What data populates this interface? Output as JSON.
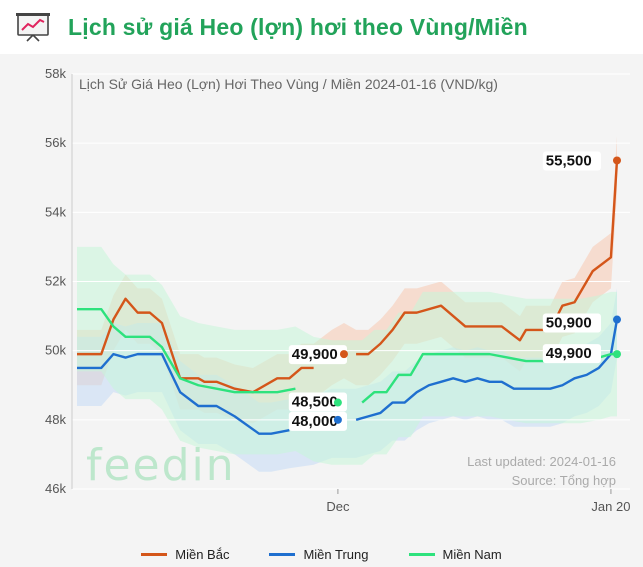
{
  "header": {
    "title": "Lịch sử giá Heo (lợn) hơi theo Vùng/Miền",
    "icon": "line-chart-board-icon"
  },
  "chart_data": {
    "type": "line",
    "title": "Lịch Sử Giá Heo (Lợn) Hơi Theo Vùng / Miền 2024-01-16 (VND/kg)",
    "ylim": [
      46000,
      58000
    ],
    "y_ticks": [
      "46k",
      "48k",
      "50k",
      "52k",
      "54k",
      "56k",
      "58k"
    ],
    "x_ticks": [
      "Dec",
      "Jan 20"
    ],
    "grid": "horizontal",
    "legend_position": "bottom",
    "watermark": "feedin",
    "last_updated": "Last updated: 2024-01-16",
    "source": "Source: Tổng hợp",
    "series": [
      {
        "name": "Miền Bắc",
        "color": "#d4561a",
        "band_color": "#f7c9b0",
        "end_label": "55,500",
        "mid_label": "49,900",
        "x": [
          "2023-10-19",
          "2023-10-23",
          "2023-10-25",
          "2023-10-27",
          "2023-10-29",
          "2023-10-31",
          "2023-11-02",
          "2023-11-05",
          "2023-11-08",
          "2023-11-09",
          "2023-11-11",
          "2023-11-14",
          "2023-11-17",
          "2023-11-21",
          "2023-11-23",
          "2023-11-25",
          "2023-11-27",
          "2023-11-30",
          "2023-12-02",
          "2023-12-04",
          "2023-12-06",
          "2023-12-08",
          "2023-12-10",
          "2023-12-12",
          "2023-12-14",
          "2023-12-18",
          "2023-12-22",
          "2023-12-24",
          "2023-12-28",
          "2023-12-31",
          "2024-01-01",
          "2024-01-03",
          "2024-01-05",
          "2024-01-07",
          "2024-01-09",
          "2024-01-12",
          "2024-01-15",
          "2024-01-16"
        ],
        "y": [
          49900,
          49900,
          50900,
          51500,
          51100,
          51100,
          50800,
          49200,
          49200,
          49100,
          49100,
          48900,
          48800,
          49200,
          49200,
          49500,
          49500,
          49900,
          50100,
          49900,
          49900,
          50200,
          50600,
          51100,
          51100,
          51300,
          50700,
          50700,
          50700,
          50300,
          50600,
          50600,
          50600,
          51300,
          51400,
          52300,
          52700,
          55500
        ]
      },
      {
        "name": "Miền Trung",
        "color": "#1f6fcf",
        "band_color": "#c4daf5",
        "end_label": "50,900",
        "mid_label": "48,000",
        "x": [
          "2023-10-19",
          "2023-10-23",
          "2023-10-25",
          "2023-10-27",
          "2023-10-29",
          "2023-10-31",
          "2023-11-02",
          "2023-11-05",
          "2023-11-08",
          "2023-11-11",
          "2023-11-14",
          "2023-11-18",
          "2023-11-20",
          "2023-11-23",
          "2023-11-27",
          "2023-11-30",
          "2023-12-02",
          "2023-12-04",
          "2023-12-06",
          "2023-12-08",
          "2023-12-10",
          "2023-12-12",
          "2023-12-14",
          "2023-12-16",
          "2023-12-18",
          "2023-12-20",
          "2023-12-22",
          "2023-12-24",
          "2023-12-26",
          "2023-12-28",
          "2023-12-30",
          "2024-01-01",
          "2024-01-03",
          "2024-01-05",
          "2024-01-07",
          "2024-01-09",
          "2024-01-11",
          "2024-01-13",
          "2024-01-15",
          "2024-01-16"
        ],
        "y": [
          49500,
          49500,
          49900,
          49800,
          49900,
          49900,
          49900,
          48800,
          48400,
          48400,
          48100,
          47600,
          47600,
          47700,
          47800,
          48000,
          48000,
          48000,
          48100,
          48200,
          48500,
          48500,
          48800,
          49000,
          49100,
          49200,
          49100,
          49200,
          49100,
          49100,
          48900,
          48900,
          48900,
          48900,
          49000,
          49200,
          49300,
          49500,
          49900,
          50900
        ]
      },
      {
        "name": "Miền Nam",
        "color": "#2ee27d",
        "band_color": "#c6f5d8",
        "end_label": "49,900",
        "mid_label": "48,500",
        "x": [
          "2023-10-19",
          "2023-10-23",
          "2023-10-25",
          "2023-10-27",
          "2023-10-29",
          "2023-10-31",
          "2023-11-02",
          "2023-11-05",
          "2023-11-08",
          "2023-11-11",
          "2023-11-14",
          "2023-11-18",
          "2023-11-21",
          "2023-11-24",
          "2023-11-27",
          "2023-11-30",
          "2023-12-01",
          "2023-12-03",
          "2023-12-05",
          "2023-12-07",
          "2023-12-09",
          "2023-12-11",
          "2023-12-13",
          "2023-12-15",
          "2023-12-17",
          "2023-12-20",
          "2023-12-23",
          "2023-12-26",
          "2023-12-29",
          "2024-01-01",
          "2024-01-04",
          "2024-01-07",
          "2024-01-10",
          "2024-01-13",
          "2024-01-15",
          "2024-01-16"
        ],
        "y": [
          51200,
          51200,
          50700,
          50400,
          50400,
          50400,
          50100,
          49200,
          49000,
          48900,
          48800,
          48800,
          48800,
          48900,
          48600,
          48500,
          48500,
          48500,
          48500,
          48800,
          48800,
          49300,
          49300,
          49900,
          49900,
          49900,
          49900,
          49900,
          49800,
          49700,
          49700,
          49700,
          49700,
          49800,
          49900,
          49900
        ]
      }
    ]
  }
}
